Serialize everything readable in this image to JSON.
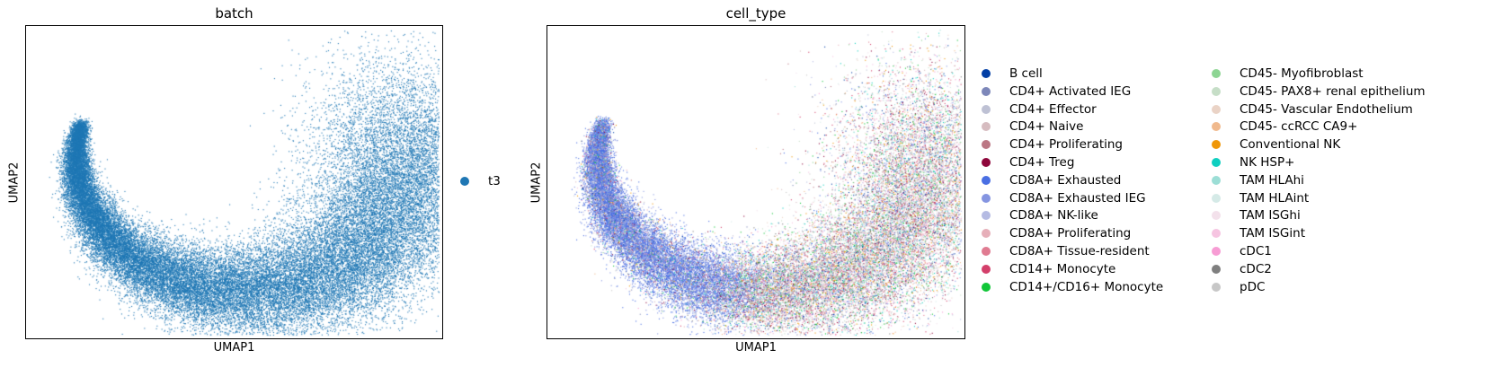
{
  "chart_data": [
    {
      "type": "scatter",
      "title": "batch",
      "xlabel": "UMAP1",
      "ylabel": "UMAP2",
      "grid": false,
      "legend_position": "right",
      "legend": [
        {
          "label": "t3",
          "color": "#1f77b4"
        }
      ]
    },
    {
      "type": "scatter",
      "title": "cell_type",
      "xlabel": "UMAP1",
      "ylabel": "UMAP2",
      "grid": false,
      "legend_position": "right",
      "legend": [
        {
          "label": "B cell",
          "color": "#023fa5"
        },
        {
          "label": "CD4+ Activated IEG",
          "color": "#7d87b9"
        },
        {
          "label": "CD4+ Effector",
          "color": "#bec1d4"
        },
        {
          "label": "CD4+ Naive",
          "color": "#d6bcc0"
        },
        {
          "label": "CD4+ Proliferating",
          "color": "#bb7784"
        },
        {
          "label": "CD4+ Treg",
          "color": "#8e063b"
        },
        {
          "label": "CD8A+ Exhausted",
          "color": "#4a6fe3"
        },
        {
          "label": "CD8A+ Exhausted IEG",
          "color": "#8595e1"
        },
        {
          "label": "CD8A+ NK-like",
          "color": "#b5bbe3"
        },
        {
          "label": "CD8A+ Proliferating",
          "color": "#e6afb9"
        },
        {
          "label": "CD8A+ Tissue-resident",
          "color": "#e07b91"
        },
        {
          "label": "CD14+ Monocyte",
          "color": "#d33f6a"
        },
        {
          "label": "CD14+/CD16+ Monocyte",
          "color": "#11c638"
        },
        {
          "label": "CD45- Myofibroblast",
          "color": "#8dd593"
        },
        {
          "label": "CD45- PAX8+ renal epithelium",
          "color": "#c6dec7"
        },
        {
          "label": "CD45- Vascular Endothelium",
          "color": "#ead3c6"
        },
        {
          "label": "CD45- ccRCC CA9+",
          "color": "#f0b98d"
        },
        {
          "label": "Conventional NK",
          "color": "#ef9708"
        },
        {
          "label": "NK HSP+",
          "color": "#0fcfc0"
        },
        {
          "label": "TAM HLAhi",
          "color": "#9cded6"
        },
        {
          "label": "TAM HLAint",
          "color": "#d5eae7"
        },
        {
          "label": "TAM ISGhi",
          "color": "#f3e1eb"
        },
        {
          "label": "TAM ISGint",
          "color": "#f6c4e1"
        },
        {
          "label": "cDC1",
          "color": "#f79cd4"
        },
        {
          "label": "cDC2",
          "color": "#7f7f7f"
        },
        {
          "label": "pDC",
          "color": "#c7c7c7"
        }
      ]
    }
  ]
}
